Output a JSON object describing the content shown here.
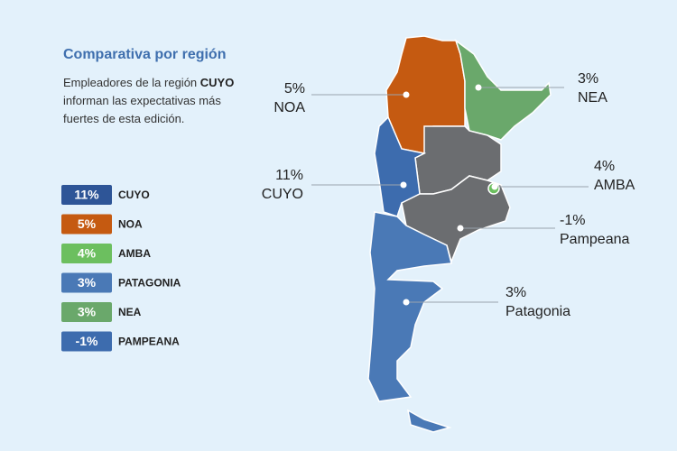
{
  "header": {
    "title": "Comparativa por región"
  },
  "description": {
    "before": "Empleadores de la región",
    "highlight": "CUYO",
    "after": "informan las expectativas más fuertes de esta edición."
  },
  "legend": [
    {
      "value": "11%",
      "region": "CUYO",
      "color": "#2e5597"
    },
    {
      "value": "5%",
      "region": "NOA",
      "color": "#c55a11"
    },
    {
      "value": "4%",
      "region": "AMBA",
      "color": "#6cbf5f"
    },
    {
      "value": "3%",
      "region": "PATAGONIA",
      "color": "#4a79b6"
    },
    {
      "value": "3%",
      "region": "NEA",
      "color": "#6aa86b"
    },
    {
      "value": "-1%",
      "region": "PAMPEANA",
      "color": "#3d6cae"
    }
  ],
  "callouts": [
    {
      "value": "5%",
      "label": "NOA"
    },
    {
      "value": "3%",
      "label": "NEA"
    },
    {
      "value": "11%",
      "label": "CUYO"
    },
    {
      "value": "4%",
      "label": "AMBA"
    },
    {
      "value": "-1%",
      "label": "Pampeana"
    },
    {
      "value": "3%",
      "label": "Patagonia"
    }
  ]
}
